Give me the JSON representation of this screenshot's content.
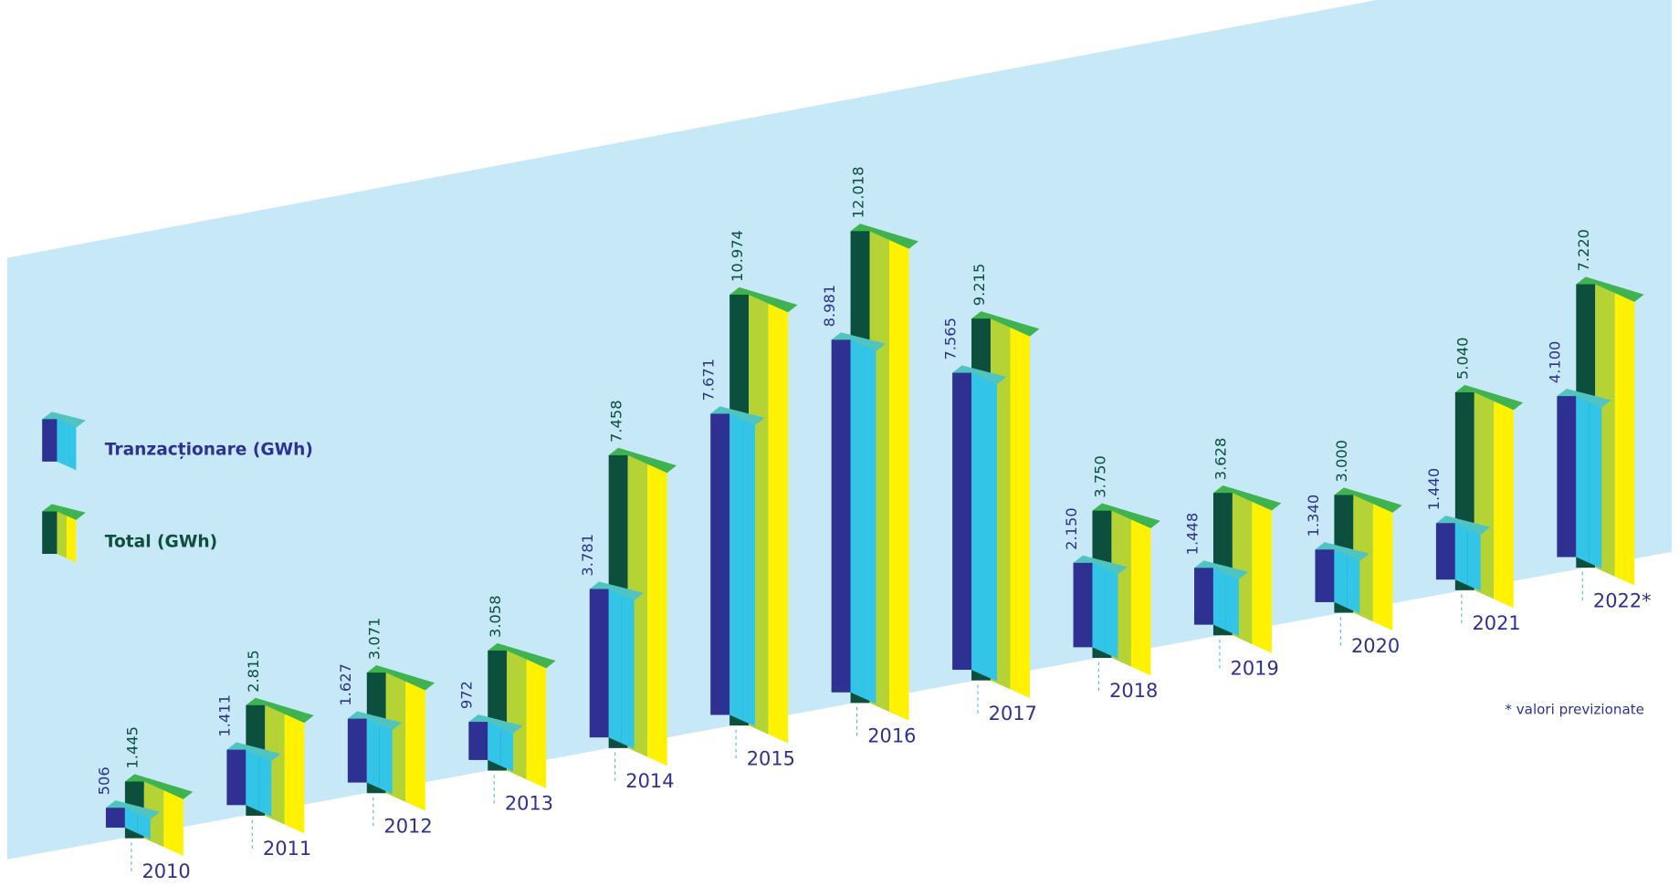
{
  "chart_data": {
    "type": "bar",
    "categories": [
      "2010",
      "2011",
      "2012",
      "2013",
      "2014",
      "2015",
      "2016",
      "2017",
      "2018",
      "2019",
      "2020",
      "2021",
      "2022*"
    ],
    "series": [
      {
        "name": "Tranzacționare (GWh)",
        "color": "#2e3192",
        "values": [
          506,
          1411,
          1627,
          972,
          3781,
          7671,
          8981,
          7565,
          2150,
          1448,
          1340,
          1440,
          4100
        ],
        "value_labels": [
          "506",
          "1.411",
          "1.627",
          "972",
          "3.781",
          "7.671",
          "8.981",
          "7.565",
          "2.150",
          "1.448",
          "1.340",
          "1.440",
          "4.100"
        ]
      },
      {
        "name": "Total (GWh)",
        "color": "#0b4f3c",
        "values": [
          1445,
          2815,
          3071,
          3058,
          7458,
          10974,
          12018,
          9215,
          3750,
          3628,
          3000,
          5040,
          7220
        ],
        "value_labels": [
          "1.445",
          "2.815",
          "3.071",
          "3.058",
          "7.458",
          "10.974",
          "12.018",
          "9.215",
          "3.750",
          "3.628",
          "3.000",
          "5.040",
          "7.220"
        ]
      }
    ],
    "legend": "left",
    "note": "* valori previzionate"
  }
}
